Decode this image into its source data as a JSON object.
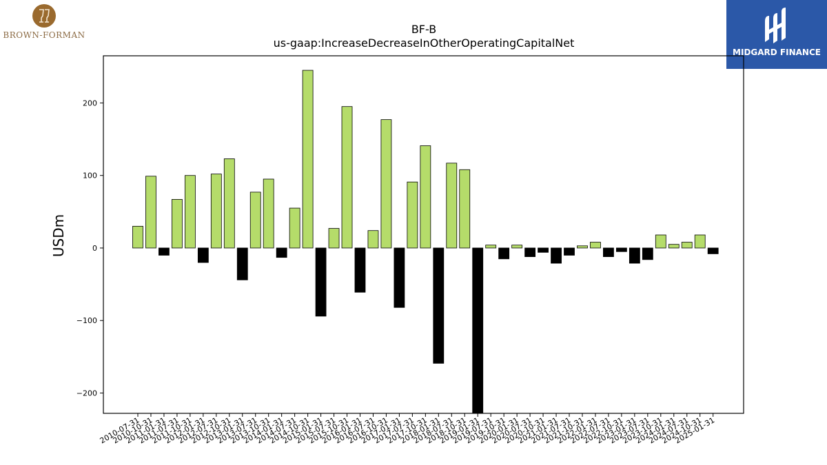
{
  "logos": {
    "left": {
      "name": "BROWN-FORMAN",
      "color": "#8b6a43"
    },
    "right": {
      "name": "MIDGARD FINANCE",
      "background": "#2b58a8"
    }
  },
  "colors": {
    "positive": "#b5dc6a",
    "negative": "#000000",
    "edge": "#000000"
  },
  "chart_data": {
    "type": "bar",
    "title": "BF-B",
    "subtitle": "us-gaap:IncreaseDecreaseInOtherOperatingCapitalNet",
    "xlabel": "",
    "ylabel": "USDm",
    "ylim": [
      -228,
      265
    ],
    "yticks": [
      -200,
      -100,
      0,
      100,
      200
    ],
    "grid": false,
    "categories": [
      "2010-07-31",
      "2010-10-31",
      "2011-01-31",
      "2011-07-31",
      "2011-10-31",
      "2012-01-31",
      "2012-07-31",
      "2012-10-31",
      "2013-01-31",
      "2013-07-31",
      "2013-10-31",
      "2014-01-31",
      "2014-07-31",
      "2014-10-31",
      "2015-01-31",
      "2015-07-31",
      "2015-10-31",
      "2016-01-31",
      "2016-07-31",
      "2016-10-31",
      "2017-01-31",
      "2017-07-31",
      "2017-10-31",
      "2018-01-31",
      "2018-07-31",
      "2018-10-31",
      "2019-01-31",
      "2019-07-31",
      "2019-10-31",
      "2020-01-31",
      "2020-07-31",
      "2020-10-31",
      "2021-01-31",
      "2021-07-31",
      "2021-10-31",
      "2022-01-31",
      "2022-07-31",
      "2022-10-31",
      "2023-01-31",
      "2023-07-31",
      "2023-10-31",
      "2024-01-31",
      "2024-07-31",
      "2024-10-31",
      "2025-01-31"
    ],
    "values": [
      30,
      99,
      -10,
      67,
      100,
      -20,
      102,
      123,
      -44,
      77,
      95,
      -13,
      55,
      245,
      -94,
      27,
      195,
      -61,
      24,
      177,
      -82,
      91,
      141,
      -159,
      117,
      108,
      -240,
      4,
      -15,
      4,
      -12,
      -6,
      -21,
      -10,
      3,
      8,
      -12,
      -5,
      -21,
      -16,
      18,
      5,
      8,
      18,
      -8
    ]
  }
}
